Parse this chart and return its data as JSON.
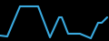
{
  "x": [
    0,
    8,
    22,
    42,
    55,
    65,
    68,
    75,
    88,
    100,
    108,
    112,
    118
  ],
  "y": [
    6,
    5,
    38,
    38,
    4,
    26,
    26,
    8,
    8,
    3,
    20,
    20,
    26
  ],
  "line_color": "#3aaadf",
  "linewidth": 1.5,
  "background_color": "#000000",
  "ylim": [
    0,
    45
  ],
  "xlim": [
    0,
    120
  ]
}
